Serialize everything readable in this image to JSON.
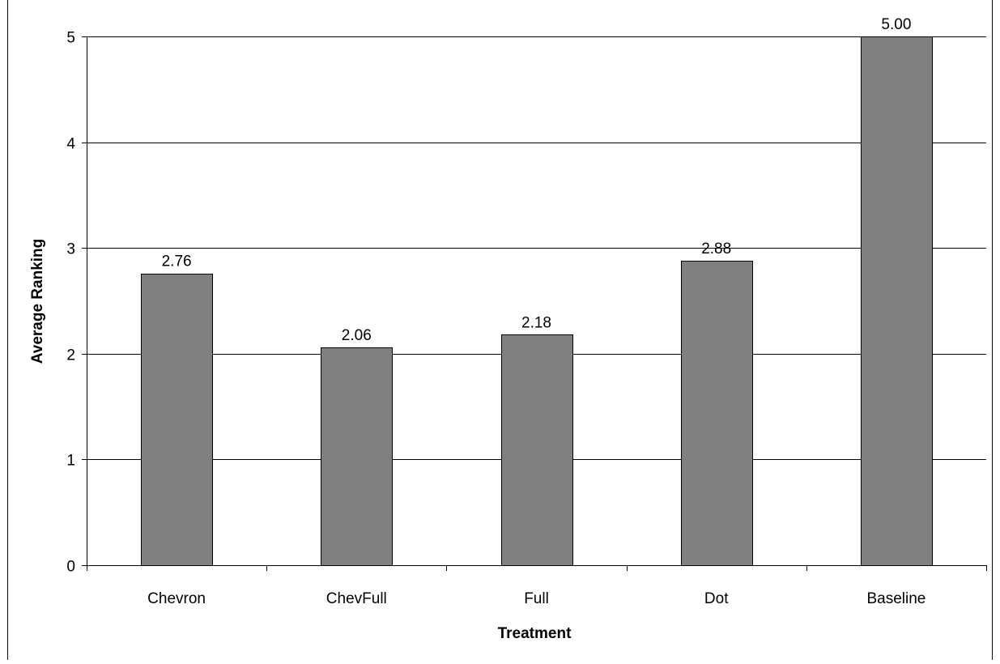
{
  "chart_data": {
    "type": "bar",
    "title": "",
    "xlabel": "Treatment",
    "ylabel": "Average Ranking",
    "categories": [
      "Chevron",
      "ChevFull",
      "Full",
      "Dot",
      "Baseline"
    ],
    "values": [
      2.76,
      2.06,
      2.18,
      2.88,
      5.0
    ],
    "data_labels": [
      "2.76",
      "2.06",
      "2.18",
      "2.88",
      "5.00"
    ],
    "ylim": [
      0,
      5
    ],
    "yticks": [
      0,
      1,
      2,
      3,
      4,
      5
    ],
    "ytick_labels": [
      "0",
      "1",
      "2",
      "3",
      "4",
      "5"
    ],
    "grid": true,
    "legend": "none",
    "colors": {
      "bar_fill": "#808080",
      "bar_stroke": "#000000",
      "grid": "#000000",
      "axis": "#000000",
      "background": "#ffffff"
    }
  }
}
